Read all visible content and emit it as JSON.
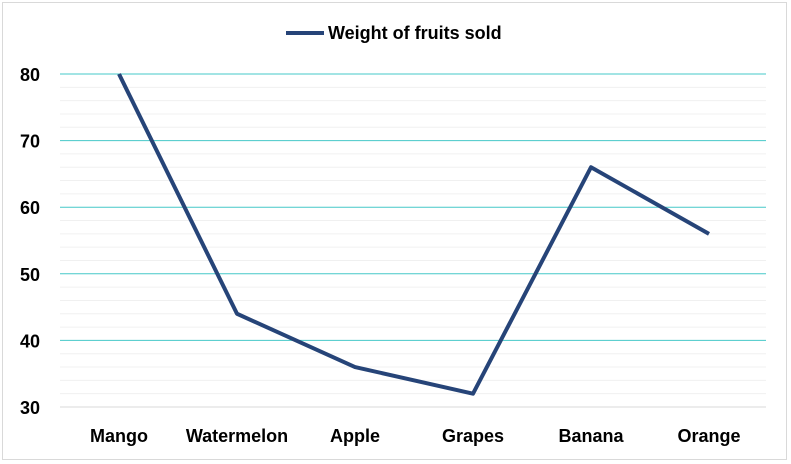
{
  "chart_data": {
    "type": "line",
    "title": "",
    "xlabel": "",
    "ylabel": "",
    "categories": [
      "Mango",
      "Watermelon",
      "Apple",
      "Grapes",
      "Banana",
      "Orange"
    ],
    "series": [
      {
        "name": "Weight of fruits sold",
        "values": [
          80,
          44,
          36,
          32,
          66,
          56
        ]
      }
    ],
    "ylim": [
      30,
      80
    ],
    "yticks": [
      30,
      40,
      50,
      60,
      70,
      80
    ],
    "y_minor_step": 2,
    "grid": true,
    "legend_position": "top",
    "colors": {
      "line": "#264478",
      "major_grid": "#46c8c8",
      "minor_grid": "#f0f0f0",
      "axis": "#d9d9d9"
    }
  }
}
